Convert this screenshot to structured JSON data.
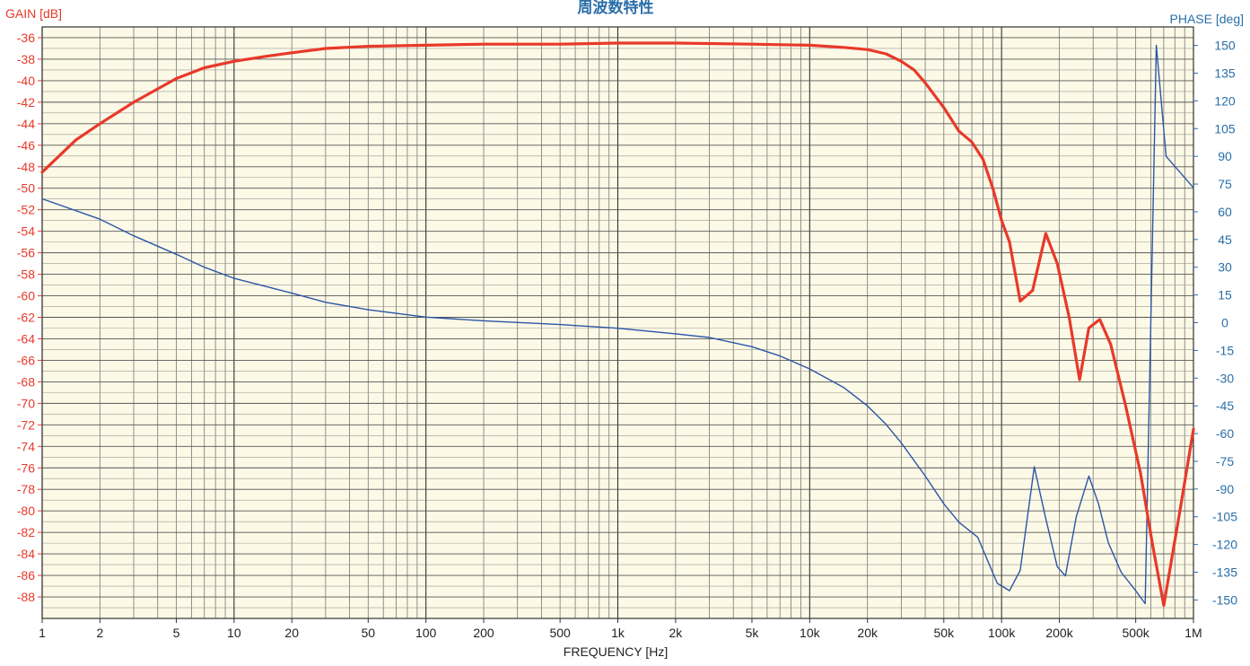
{
  "chart_data": {
    "type": "line",
    "title": "周波数特性",
    "xlabel": "FREQUENCY [Hz]",
    "ylabel_left": "GAIN [dB]",
    "ylabel_right": "PHASE [deg]",
    "x_scale": "log",
    "xlim": [
      1,
      1000000
    ],
    "ylim_left": [
      -90,
      -35
    ],
    "ylim_right": [
      -160,
      160
    ],
    "grid": true,
    "colors": {
      "gain": "#e8392a",
      "phase": "#2b56a6",
      "gain_axis": "#e8392a",
      "phase_axis": "#2a6fa8",
      "plot_bg": "#fcf9e6",
      "grid": "#555555"
    },
    "x_ticks": [
      {
        "v": 1,
        "label": "1"
      },
      {
        "v": 2,
        "label": "2"
      },
      {
        "v": 5,
        "label": "5"
      },
      {
        "v": 10,
        "label": "10"
      },
      {
        "v": 20,
        "label": "20"
      },
      {
        "v": 50,
        "label": "50"
      },
      {
        "v": 100,
        "label": "100"
      },
      {
        "v": 200,
        "label": "200"
      },
      {
        "v": 500,
        "label": "500"
      },
      {
        "v": 1000,
        "label": "1k"
      },
      {
        "v": 2000,
        "label": "2k"
      },
      {
        "v": 5000,
        "label": "5k"
      },
      {
        "v": 10000,
        "label": "10k"
      },
      {
        "v": 20000,
        "label": "20k"
      },
      {
        "v": 50000,
        "label": "50k"
      },
      {
        "v": 100000,
        "label": "100k"
      },
      {
        "v": 200000,
        "label": "200k"
      },
      {
        "v": 500000,
        "label": "500k"
      },
      {
        "v": 1000000,
        "label": "1M"
      }
    ],
    "y_ticks_left": [
      "-36",
      "-38",
      "-40",
      "-42",
      "-44",
      "-46",
      "-48",
      "-50",
      "-52",
      "-54",
      "-56",
      "-58",
      "-60",
      "-62",
      "-64",
      "-66",
      "-68",
      "-70",
      "-72",
      "-74",
      "-76",
      "-78",
      "-80",
      "-82",
      "-84",
      "-86",
      "-88"
    ],
    "y_ticks_right": [
      "150",
      "135",
      "120",
      "105",
      "90",
      "75",
      "60",
      "45",
      "30",
      "15",
      "0",
      "-15",
      "-30",
      "-45",
      "-60",
      "-75",
      "-90",
      "-105",
      "-120",
      "-135",
      "-150"
    ],
    "series": [
      {
        "key": "gain",
        "axis": "left",
        "x": [
          1,
          1.5,
          2,
          3,
          5,
          7,
          10,
          15,
          20,
          30,
          50,
          100,
          200,
          500,
          1000,
          2000,
          5000,
          10000,
          15000,
          20000,
          25000,
          30000,
          35000,
          40000,
          50000,
          60000,
          70000,
          80000,
          90000,
          100000,
          110000,
          125000,
          145000,
          170000,
          195000,
          225000,
          255000,
          285000,
          325000,
          370000,
          440000,
          530000,
          610000,
          700000,
          850000,
          1000000
        ],
        "values": [
          -48.5,
          -45.5,
          -44.0,
          -42.0,
          -39.8,
          -38.8,
          -38.2,
          -37.7,
          -37.4,
          -37.0,
          -36.8,
          -36.7,
          -36.6,
          -36.6,
          -36.5,
          -36.5,
          -36.6,
          -36.7,
          -36.9,
          -37.1,
          -37.5,
          -38.2,
          -39.0,
          -40.2,
          -42.5,
          -44.7,
          -45.7,
          -47.3,
          -50.0,
          -53.0,
          -55.0,
          -60.5,
          -59.5,
          -54.2,
          -57.0,
          -62.0,
          -67.8,
          -63.0,
          -62.2,
          -64.5,
          -70.0,
          -76.5,
          -83.0,
          -88.8,
          -80.0,
          -72.4
        ]
      },
      {
        "key": "phase",
        "axis": "right",
        "x": [
          1,
          2,
          3,
          5,
          7,
          10,
          20,
          30,
          50,
          100,
          200,
          500,
          1000,
          2000,
          3000,
          5000,
          7000,
          10000,
          15000,
          20000,
          25000,
          30000,
          40000,
          50000,
          60000,
          75000,
          95000,
          110000,
          125000,
          148000,
          170000,
          195000,
          215000,
          245000,
          285000,
          320000,
          360000,
          420000,
          500000,
          560000,
          640000,
          720000,
          1000000
        ],
        "values": [
          67,
          56,
          47,
          37,
          30,
          24,
          16,
          11,
          7,
          3,
          1,
          -1,
          -3,
          -6,
          -8,
          -13,
          -18,
          -25,
          -35,
          -45,
          -55,
          -65,
          -83,
          -98,
          -108,
          -116,
          -141,
          -145,
          -134,
          -78,
          -106,
          -132,
          -137,
          -105,
          -83,
          -98,
          -119,
          -135,
          -145,
          -152,
          150,
          90,
          73
        ]
      }
    ]
  }
}
